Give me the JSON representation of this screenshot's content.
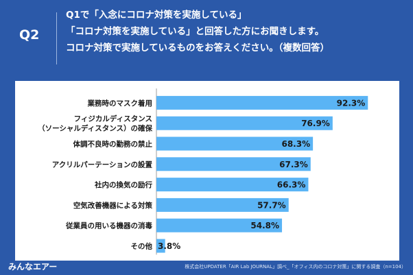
{
  "header": {
    "badge": "Q2",
    "question_lines": [
      "Q1で「入念にコロナ対策を実施している」",
      "「コロナ対策を実施している」と回答した方にお聞きします。",
      "コロナ対策で実施しているものをお答えください。（複数回答）"
    ]
  },
  "footer": {
    "logo": "みんなエアー",
    "source": "株式会社UPDATER「AIR Lab JOURNAL」調べ_「オフィス内のコロナ対策」に関する調査（n=104）"
  },
  "colors": {
    "bar": "#5ab4f5",
    "background": "#2b59a9",
    "text": "#1a1a1a"
  },
  "chart_data": {
    "type": "bar",
    "orientation": "horizontal",
    "categories": [
      [
        "業務時のマスク着用"
      ],
      [
        "フィジカルディスタンス",
        "（ソーシャルディスタンス）の確保"
      ],
      [
        "体調不良時の勤務の禁止"
      ],
      [
        "アクリルパーテーションの設置"
      ],
      [
        "社内の換気の励行"
      ],
      [
        "空気改善機器による対策"
      ],
      [
        "従業員の用いる機器の消毒"
      ],
      [
        "その他"
      ]
    ],
    "values": [
      92.3,
      76.9,
      68.3,
      67.3,
      66.3,
      57.7,
      54.8,
      3.8
    ],
    "value_labels": [
      "92.3%",
      "76.9%",
      "68.3%",
      "67.3%",
      "66.3%",
      "57.7%",
      "54.8%",
      "3.8%"
    ],
    "xlim": [
      0,
      100
    ],
    "unit": "%"
  }
}
